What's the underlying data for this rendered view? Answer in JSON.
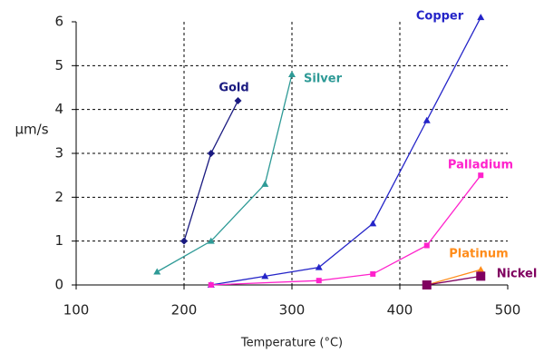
{
  "chart_data": {
    "type": "line",
    "x_label": "Temperature (°C)",
    "y_label": "µm/s",
    "xlim": [
      100,
      500
    ],
    "xticks": [
      100,
      200,
      300,
      400,
      500
    ],
    "ylim": [
      0,
      6
    ],
    "yticks": [
      0,
      1,
      2,
      3,
      4,
      5,
      6
    ],
    "grid": true,
    "series": [
      {
        "name": "Gold",
        "color": "#1a1a80",
        "marker": "diamond",
        "x": [
          200,
          225,
          250
        ],
        "values": [
          1,
          3,
          4.2
        ]
      },
      {
        "name": "Silver",
        "color": "#2e9a96",
        "marker": "triangle",
        "x": [
          175,
          225,
          275,
          300
        ],
        "values": [
          0.3,
          1,
          2.3,
          4.8
        ]
      },
      {
        "name": "Copper",
        "color": "#2424c8",
        "marker": "triangle",
        "x": [
          225,
          275,
          325,
          375,
          425,
          475
        ],
        "values": [
          0,
          0.2,
          0.4,
          1.4,
          3.75,
          6.1
        ]
      },
      {
        "name": "Palladium",
        "color": "#ff22cc",
        "marker": "square",
        "x": [
          225,
          325,
          375,
          425,
          475
        ],
        "values": [
          0,
          0.1,
          0.25,
          0.9,
          2.5
        ]
      },
      {
        "name": "Platinum",
        "color": "#ff8c1a",
        "marker": "triangle",
        "x": [
          425,
          475
        ],
        "values": [
          0,
          0.35
        ]
      },
      {
        "name": "Nickel",
        "color": "#800060",
        "marker": "bigsquare",
        "x": [
          425,
          475
        ],
        "values": [
          0,
          0.2
        ]
      }
    ]
  }
}
